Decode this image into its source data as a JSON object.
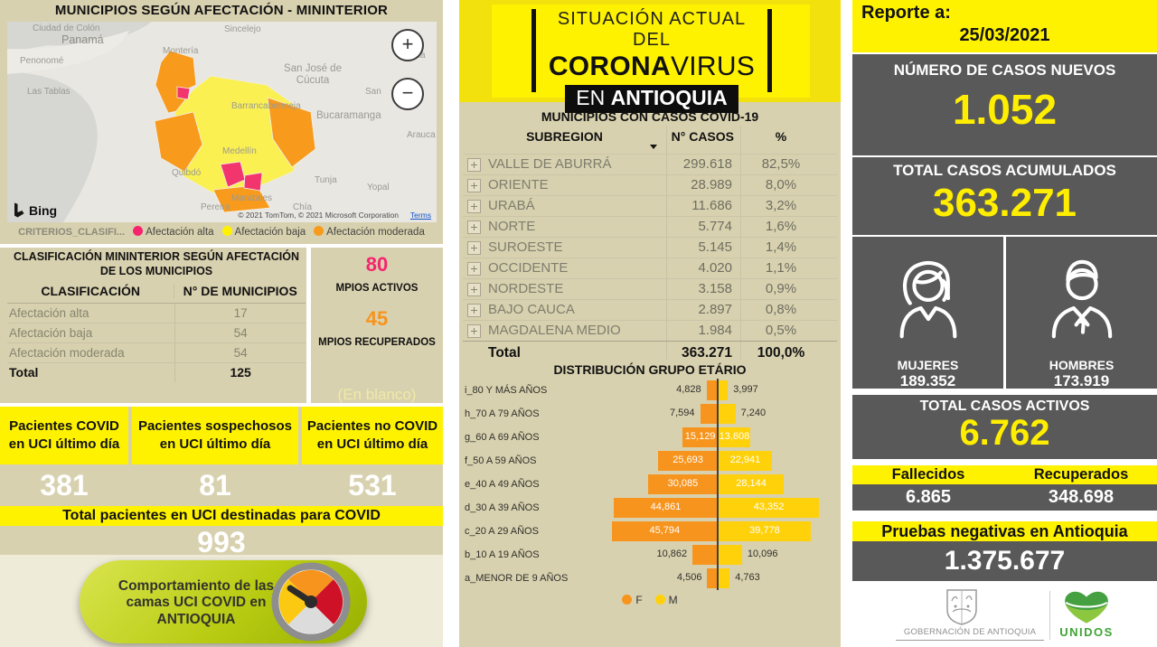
{
  "colors": {
    "accent_yellow": "#FFF200",
    "panel_tan": "#D8D1AF",
    "box_gray": "#595959",
    "pink": "#F4256E",
    "orange": "#F7941D",
    "afectacion_alta": "#F5256D",
    "afectacion_baja": "#FFF100",
    "afectacion_moderada": "#F89A1C"
  },
  "left": {
    "title": "MUNICIPIOS SEGÚN AFECTACIÓN - MININTERIOR",
    "map": {
      "bing_label": "Bing",
      "copyright": "© 2021 TomTom, © 2021 Microsoft Corporation",
      "terms": "Terms",
      "zoom_in": "+",
      "zoom_out": "−",
      "labels": [
        "Ciudad de Colón",
        "Panamá",
        "Penonomé",
        "Las Tablas",
        "Sincelejo",
        "Montería",
        "San José de Cúcuta",
        "Mérida",
        "San",
        "Bucaramanga",
        "Arauca",
        "Barrancabermeja",
        "Medellín",
        "Quibdó",
        "Tunja",
        "Yopal",
        "Manizales",
        "Pereira",
        "Chía"
      ]
    },
    "legend": {
      "label": "CRITERIOS_CLASIFI...",
      "items": [
        {
          "name": "Afectación alta"
        },
        {
          "name": "Afectación baja"
        },
        {
          "name": "Afectación moderada"
        }
      ]
    },
    "classification": {
      "title": "CLASIFICACIÓN MININTERIOR SEGÚN AFECTACIÓN DE LOS MUNICIPIOS",
      "headers": [
        "CLASIFICACIÓN",
        "N° DE MUNICIPIOS"
      ],
      "rows": [
        [
          "Afectación alta",
          "17"
        ],
        [
          "Afectación baja",
          "54"
        ],
        [
          "Afectación moderada",
          "54"
        ]
      ],
      "total": [
        "Total",
        "125"
      ]
    },
    "mpios": {
      "activos_value": "80",
      "activos_label": "MPIOS ACTIVOS",
      "recuperados_value": "45",
      "recuperados_label": "MPIOS RECUPERADOS",
      "blank_label": "(En blanco)"
    },
    "uci": {
      "cards": [
        {
          "label": "Pacientes COVID en UCI último día",
          "value": "381"
        },
        {
          "label": "Pacientes sospechosos en UCI último día",
          "value": "81"
        },
        {
          "label": "Pacientes no COVID en UCI último día",
          "value": "531"
        }
      ],
      "total_label": "Total pacientes en UCI destinadas para COVID",
      "total_value": "993"
    },
    "pill_label": "Comportamiento de las camas UCI COVID en ANTIOQUIA"
  },
  "center": {
    "banner": {
      "line1": "SITUACIÓN ACTUAL DEL",
      "line2_bold": "CORONA",
      "line2_light": "VIRUS",
      "line3_light": "EN ",
      "line3_bold": "ANTIOQUIA"
    },
    "table": {
      "title": "MUNICIPIOS CON CASOS COVID-19",
      "headers": [
        "SUBREGION",
        "N° CASOS",
        "%"
      ],
      "rows": [
        [
          "VALLE DE ABURRÁ",
          "299.618",
          "82,5%"
        ],
        [
          "ORIENTE",
          "28.989",
          "8,0%"
        ],
        [
          "URABÁ",
          "11.686",
          "3,2%"
        ],
        [
          "NORTE",
          "5.774",
          "1,6%"
        ],
        [
          "SUROESTE",
          "5.145",
          "1,4%"
        ],
        [
          "OCCIDENTE",
          "4.020",
          "1,1%"
        ],
        [
          "NORDESTE",
          "3.158",
          "0,9%"
        ],
        [
          "BAJO CAUCA",
          "2.897",
          "0,8%"
        ],
        [
          "MAGDALENA MEDIO",
          "1.984",
          "0,5%"
        ]
      ],
      "total": [
        "Total",
        "363.271",
        "100,0%"
      ]
    }
  },
  "right": {
    "report_label": "Reporte a:",
    "report_date": "25/03/2021",
    "new_cases_label": "NÚMERO DE CASOS NUEVOS",
    "new_cases_value": "1.052",
    "total_cases_label": "TOTAL CASOS ACUMULADOS",
    "total_cases_value": "363.271",
    "women_label": "MUJERES",
    "women_value": "189.352",
    "men_label": "HOMBRES",
    "men_value": "173.919",
    "active_label": "TOTAL CASOS ACTIVOS",
    "active_value": "6.762",
    "deaths_label": "Fallecidos",
    "deaths_value": "6.865",
    "recovered_label": "Recuperados",
    "recovered_value": "348.698",
    "negative_label": "Pruebas negativas en Antioquia",
    "negative_value": "1.375.677",
    "gobernacion_label": "GOBERNACIÓN DE ANTIOQUIA",
    "unidos_label": "UNIDOS"
  },
  "chart_data": {
    "type": "bar",
    "subtype": "population-pyramid",
    "title": "DISTRIBUCIÓN GRUPO ETÁRIO",
    "categories": [
      "i_80 Y MÁS AÑOS",
      "h_70 A 79 AÑOS",
      "g_60 A 69 AÑOS",
      "f_50 A 59 AÑOS",
      "e_40 A 49 AÑOS",
      "d_30 A 39 AÑOS",
      "c_20 A 29 AÑOS",
      "b_10 A 19 AÑOS",
      "a_MENOR DE 9 AÑOS"
    ],
    "series": [
      {
        "name": "F",
        "color": "#F7941E",
        "values": [
          4828,
          7594,
          15129,
          25693,
          30085,
          44861,
          45794,
          10862,
          4506
        ]
      },
      {
        "name": "M",
        "color": "#FFD10A",
        "values": [
          3997,
          7240,
          13608,
          22941,
          28144,
          43352,
          39778,
          10096,
          4763
        ]
      }
    ],
    "value_labels": [
      [
        "4,828",
        "3,997"
      ],
      [
        "7,594",
        "7,240"
      ],
      [
        "15,129",
        "13,608"
      ],
      [
        "25,693",
        "22,941"
      ],
      [
        "30,085",
        "28,144"
      ],
      [
        "44,861",
        "43,352"
      ],
      [
        "45,794",
        "39,778"
      ],
      [
        "10,862",
        "10,096"
      ],
      [
        "4,506",
        "4,763"
      ]
    ],
    "legend_position": "bottom",
    "grid": false
  }
}
